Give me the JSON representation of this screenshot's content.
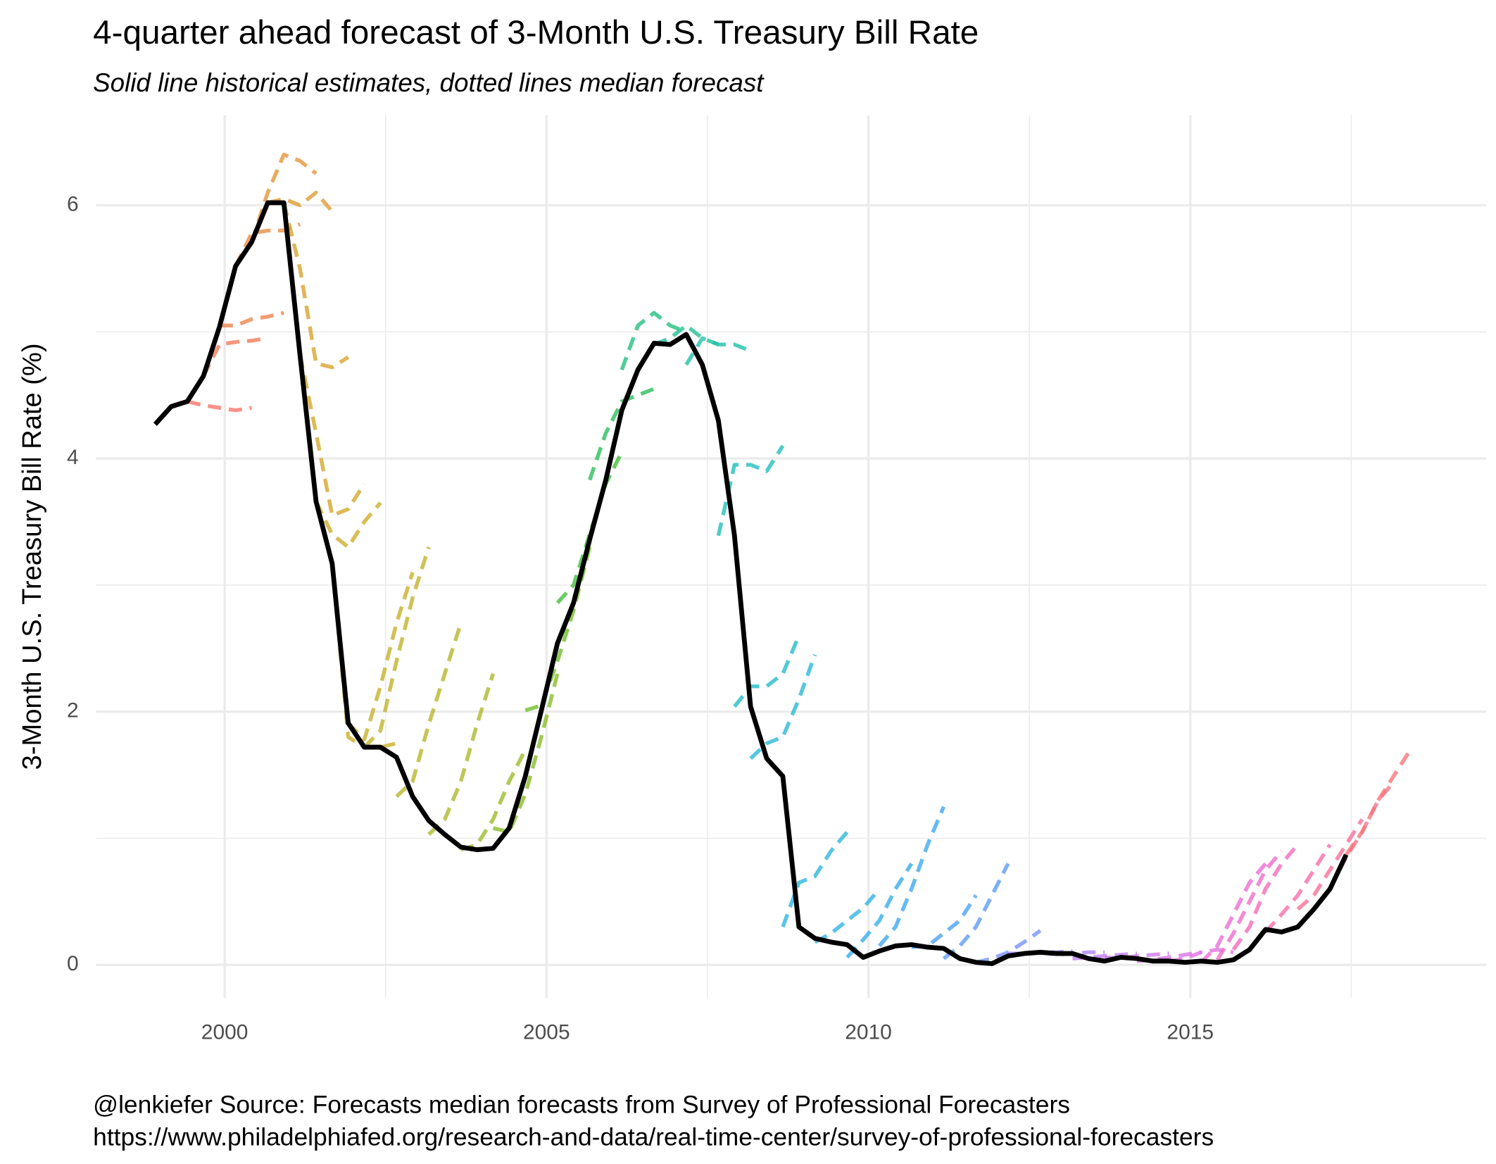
{
  "chart_data": {
    "type": "line",
    "title": "4-quarter ahead forecast of 3-Month U.S. Treasury Bill Rate",
    "subtitle": "Solid line historical estimates, dotted lines median forecast",
    "y_label": "3-Month U.S. Treasury Bill Rate (%)",
    "caption": [
      "@lenkiefer Source: Forecasts median forecasts from Survey of Professional Forecasters",
      "https://www.philadelphiafed.org/research-and-data/real-time-center/survey-of-professional-forecasters"
    ],
    "xlim": [
      1998,
      2019.6
    ],
    "ylim": [
      -0.26,
      6.71
    ],
    "xticks": [
      2000,
      2005,
      2010,
      2015
    ],
    "yticks": [
      0,
      2,
      4,
      6
    ],
    "x_minor_grid": [
      2002.5,
      2007.5,
      2012.5,
      2017.5
    ],
    "y_minor_grid": [
      1,
      3,
      5
    ],
    "grid": true,
    "series": [
      {
        "color": "#F8766D",
        "dashed": true,
        "x": [
          1999.42,
          1999.67,
          1999.92,
          2000.17,
          2000.42
        ],
        "values": [
          4.45,
          4.42,
          4.4,
          4.38,
          4.4
        ]
      },
      {
        "color": "#F37D5C",
        "dashed": true,
        "x": [
          1999.67,
          1999.92,
          2000.17,
          2000.42,
          2000.67
        ],
        "values": [
          4.65,
          4.9,
          4.92,
          4.93,
          4.95
        ]
      },
      {
        "color": "#EE8450",
        "dashed": true,
        "x": [
          1999.92,
          2000.17,
          2000.42,
          2000.67,
          2000.92
        ],
        "values": [
          5.05,
          5.05,
          5.1,
          5.12,
          5.15
        ]
      },
      {
        "color": "#E98D42",
        "dashed": true,
        "x": [
          2000.17,
          2000.42,
          2000.67,
          2000.92,
          2001.17
        ],
        "values": [
          5.52,
          5.78,
          5.8,
          5.8,
          5.85
        ]
      },
      {
        "color": "#E4963A",
        "dashed": true,
        "x": [
          2000.42,
          2000.67,
          2000.92,
          2001.17,
          2001.42
        ],
        "values": [
          5.71,
          6.1,
          6.4,
          6.35,
          6.25
        ]
      },
      {
        "color": "#DF9E33",
        "dashed": true,
        "x": [
          2000.67,
          2000.92,
          2001.17,
          2001.42,
          2001.67
        ],
        "values": [
          6.02,
          6.05,
          6.0,
          6.1,
          5.95
        ]
      },
      {
        "color": "#DAA32E",
        "dashed": true,
        "x": [
          2000.92,
          2001.17,
          2001.42,
          2001.67,
          2001.92
        ],
        "values": [
          6.02,
          5.5,
          4.75,
          4.72,
          4.8
        ]
      },
      {
        "color": "#D5A82B",
        "dashed": true,
        "x": [
          2001.17,
          2001.42,
          2001.67,
          2001.92,
          2002.17
        ],
        "values": [
          4.82,
          4.2,
          3.55,
          3.6,
          3.8
        ]
      },
      {
        "color": "#CFAD2B",
        "dashed": true,
        "x": [
          2001.42,
          2001.67,
          2001.92,
          2002.17,
          2002.42
        ],
        "values": [
          3.66,
          3.4,
          3.3,
          3.5,
          3.65
        ]
      },
      {
        "color": "#CBB02B",
        "dashed": true,
        "x": [
          2001.67,
          2001.92,
          2002.17,
          2002.42,
          2002.67
        ],
        "values": [
          3.17,
          1.8,
          1.72,
          1.72,
          1.75
        ]
      },
      {
        "color": "#C6B22C",
        "dashed": true,
        "x": [
          2001.92,
          2002.17,
          2002.42,
          2002.67,
          2002.92
        ],
        "values": [
          1.91,
          1.78,
          2.2,
          2.7,
          3.1
        ]
      },
      {
        "color": "#C0B42C",
        "dashed": true,
        "x": [
          2002.17,
          2002.42,
          2002.67,
          2002.92,
          2003.17
        ],
        "values": [
          1.72,
          1.85,
          2.4,
          2.9,
          3.3
        ]
      },
      {
        "color": "#B8B72B",
        "dashed": true,
        "x": [
          2002.67,
          2002.92,
          2003.17,
          2003.42,
          2003.67
        ],
        "values": [
          1.33,
          1.45,
          1.9,
          2.3,
          2.7
        ]
      },
      {
        "color": "#ADB92B",
        "dashed": true,
        "x": [
          2003.17,
          2003.42,
          2003.67,
          2003.92,
          2004.17
        ],
        "values": [
          1.03,
          1.15,
          1.45,
          1.9,
          2.3
        ]
      },
      {
        "color": "#9DBC2B",
        "dashed": true,
        "x": [
          2003.67,
          2003.92,
          2004.17,
          2004.42,
          2004.67
        ],
        "values": [
          0.91,
          0.95,
          1.15,
          1.45,
          1.7
        ]
      },
      {
        "color": "#8ABD2A",
        "dashed": true,
        "x": [
          2004.17,
          2004.42,
          2004.67,
          2004.92,
          2005.17
        ],
        "values": [
          1.08,
          1.05,
          1.35,
          1.8,
          2.3
        ]
      },
      {
        "color": "#6EBE2C",
        "dashed": true,
        "x": [
          2004.67,
          2004.92,
          2005.17,
          2005.42,
          2005.67
        ],
        "values": [
          2.01,
          2.05,
          2.4,
          2.8,
          3.3
        ]
      },
      {
        "color": "#45BE3C",
        "dashed": true,
        "x": [
          2005.17,
          2005.42,
          2005.67,
          2005.92,
          2006.17
        ],
        "values": [
          2.86,
          3.0,
          3.4,
          3.8,
          4.05
        ]
      },
      {
        "color": "#2DBE5E",
        "dashed": true,
        "x": [
          2005.67,
          2005.92,
          2006.17,
          2006.42,
          2006.67
        ],
        "values": [
          3.83,
          4.2,
          4.45,
          4.5,
          4.55
        ]
      },
      {
        "color": "#26BF7E",
        "dashed": true,
        "x": [
          2006.17,
          2006.42,
          2006.67,
          2006.92,
          2007.17
        ],
        "values": [
          4.7,
          5.05,
          5.15,
          5.05,
          5.0
        ]
      },
      {
        "color": "#21C093",
        "dashed": true,
        "x": [
          2006.67,
          2006.92,
          2007.17,
          2007.42,
          2007.67
        ],
        "values": [
          4.9,
          4.95,
          5.05,
          4.95,
          4.9
        ]
      },
      {
        "color": "#20C0A8",
        "dashed": true,
        "x": [
          2007.17,
          2007.42,
          2007.67,
          2007.92,
          2008.17
        ],
        "values": [
          4.74,
          4.95,
          4.9,
          4.9,
          4.85
        ]
      },
      {
        "color": "#22BFBC",
        "dashed": true,
        "x": [
          2007.67,
          2007.92,
          2008.17,
          2008.42,
          2008.67
        ],
        "values": [
          3.39,
          3.95,
          3.95,
          3.9,
          4.1
        ]
      },
      {
        "color": "#26BCCB",
        "dashed": true,
        "x": [
          2007.92,
          2008.17,
          2008.42,
          2008.67,
          2008.92
        ],
        "values": [
          2.04,
          2.2,
          2.2,
          2.3,
          2.6
        ]
      },
      {
        "color": "#2ABAD6",
        "dashed": true,
        "x": [
          2008.17,
          2008.42,
          2008.67,
          2008.92,
          2009.17
        ],
        "values": [
          1.63,
          1.75,
          1.8,
          2.1,
          2.45
        ]
      },
      {
        "color": "#2EB7DF",
        "dashed": true,
        "x": [
          2008.67,
          2008.92,
          2009.17,
          2009.42,
          2009.67
        ],
        "values": [
          0.3,
          0.65,
          0.7,
          0.9,
          1.05
        ]
      },
      {
        "color": "#33B3E6",
        "dashed": true,
        "x": [
          2009.17,
          2009.42,
          2009.67,
          2009.92,
          2010.17
        ],
        "values": [
          0.18,
          0.25,
          0.35,
          0.45,
          0.6
        ]
      },
      {
        "color": "#38AEEB",
        "dashed": true,
        "x": [
          2009.67,
          2009.92,
          2010.17,
          2010.42,
          2010.67
        ],
        "values": [
          0.06,
          0.2,
          0.35,
          0.6,
          0.8
        ]
      },
      {
        "color": "#3EA9F0",
        "dashed": true,
        "x": [
          2010.17,
          2010.42,
          2010.67,
          2010.92,
          2011.17
        ],
        "values": [
          0.15,
          0.3,
          0.6,
          0.95,
          1.25
        ]
      },
      {
        "color": "#4EA3F3",
        "dashed": true,
        "x": [
          2010.67,
          2010.92,
          2011.17,
          2011.42,
          2011.67
        ],
        "values": [
          0.14,
          0.15,
          0.25,
          0.35,
          0.55
        ]
      },
      {
        "color": "#5F9CF5",
        "dashed": true,
        "x": [
          2011.17,
          2011.42,
          2011.67,
          2011.92,
          2012.17
        ],
        "values": [
          0.05,
          0.15,
          0.3,
          0.55,
          0.8
        ]
      },
      {
        "color": "#7894F7",
        "dashed": true,
        "x": [
          2011.67,
          2011.92,
          2012.17,
          2012.42,
          2012.67
        ],
        "values": [
          0.02,
          0.05,
          0.1,
          0.18,
          0.27
        ]
      },
      {
        "color": "#9A8CF8",
        "dashed": true,
        "x": [
          2012.17,
          2012.42,
          2012.67,
          2012.92,
          2013.17
        ],
        "values": [
          0.09,
          0.09,
          0.1,
          0.1,
          0.11
        ]
      },
      {
        "color": "#B084F8",
        "dashed": true,
        "x": [
          2012.67,
          2012.92,
          2013.17,
          2013.42,
          2013.67
        ],
        "values": [
          0.1,
          0.08,
          0.09,
          0.1,
          0.1
        ]
      },
      {
        "color": "#C17EF6",
        "dashed": true,
        "x": [
          2013.17,
          2013.42,
          2013.67,
          2013.92,
          2014.17
        ],
        "values": [
          0.05,
          0.06,
          0.07,
          0.08,
          0.09
        ]
      },
      {
        "color": "#CF79F0",
        "dashed": true,
        "x": [
          2013.67,
          2013.92,
          2014.17,
          2014.42,
          2014.67
        ],
        "values": [
          0.06,
          0.05,
          0.07,
          0.08,
          0.09
        ]
      },
      {
        "color": "#DB74E8",
        "dashed": true,
        "x": [
          2014.17,
          2014.42,
          2014.67,
          2014.92,
          2015.17
        ],
        "values": [
          0.03,
          0.04,
          0.06,
          0.08,
          0.1
        ]
      },
      {
        "color": "#E570E0",
        "dashed": true,
        "x": [
          2014.67,
          2014.92,
          2015.17,
          2015.42,
          2015.67
        ],
        "values": [
          0.03,
          0.05,
          0.1,
          0.12,
          0.1
        ]
      },
      {
        "color": "#EC6DD5",
        "dashed": true,
        "x": [
          2015.17,
          2015.42,
          2015.67,
          2015.92,
          2016.17
        ],
        "values": [
          0.02,
          0.15,
          0.4,
          0.65,
          0.8
        ]
      },
      {
        "color": "#F06BC8",
        "dashed": true,
        "x": [
          2015.42,
          2015.67,
          2015.92,
          2016.17,
          2016.42
        ],
        "values": [
          0.04,
          0.25,
          0.5,
          0.75,
          0.9
        ]
      },
      {
        "color": "#F46CB9",
        "dashed": true,
        "x": [
          2015.67,
          2015.92,
          2016.17,
          2016.42,
          2016.67
        ],
        "values": [
          0.12,
          0.3,
          0.6,
          0.8,
          0.95
        ]
      },
      {
        "color": "#F66EAA",
        "dashed": true,
        "x": [
          2016.17,
          2016.42,
          2016.67,
          2016.92,
          2017.17
        ],
        "values": [
          0.26,
          0.4,
          0.55,
          0.75,
          0.95
        ]
      },
      {
        "color": "#F7719A",
        "dashed": true,
        "x": [
          2016.67,
          2016.92,
          2017.17,
          2017.42,
          2017.67
        ],
        "values": [
          0.44,
          0.55,
          0.75,
          0.95,
          1.15
        ]
      },
      {
        "color": "#F8738A",
        "dashed": true,
        "x": [
          2017.17,
          2017.42,
          2017.67,
          2017.92,
          2018.17
        ],
        "values": [
          0.6,
          0.85,
          1.05,
          1.3,
          1.45
        ]
      },
      {
        "color": "#F8767B",
        "dashed": true,
        "x": [
          2017.42,
          2017.67,
          2017.92,
          2018.17,
          2018.42
        ],
        "values": [
          0.87,
          1.05,
          1.3,
          1.5,
          1.7
        ]
      },
      {
        "color": "#000000",
        "dashed": false,
        "x": [
          1998.92,
          1999.17,
          1999.42,
          1999.67,
          1999.92,
          2000.17,
          2000.42,
          2000.67,
          2000.92,
          2001.17,
          2001.42,
          2001.67,
          2001.92,
          2002.17,
          2002.42,
          2002.67,
          2002.92,
          2003.17,
          2003.42,
          2003.67,
          2003.92,
          2004.17,
          2004.42,
          2004.67,
          2004.92,
          2005.17,
          2005.42,
          2005.67,
          2005.92,
          2006.17,
          2006.42,
          2006.67,
          2006.92,
          2007.17,
          2007.42,
          2007.67,
          2007.92,
          2008.17,
          2008.42,
          2008.67,
          2008.92,
          2009.17,
          2009.42,
          2009.67,
          2009.92,
          2010.17,
          2010.42,
          2010.67,
          2010.92,
          2011.17,
          2011.42,
          2011.67,
          2011.92,
          2012.17,
          2012.42,
          2012.67,
          2012.92,
          2013.17,
          2013.42,
          2013.67,
          2013.92,
          2014.17,
          2014.42,
          2014.67,
          2014.92,
          2015.17,
          2015.42,
          2015.67,
          2015.92,
          2016.17,
          2016.42,
          2016.67,
          2016.92,
          2017.17,
          2017.42
        ],
        "values": [
          4.27,
          4.41,
          4.45,
          4.65,
          5.04,
          5.52,
          5.71,
          6.02,
          6.02,
          4.82,
          3.66,
          3.17,
          1.91,
          1.72,
          1.72,
          1.64,
          1.33,
          1.14,
          1.03,
          0.93,
          0.91,
          0.92,
          1.08,
          1.49,
          2.01,
          2.54,
          2.86,
          3.36,
          3.83,
          4.38,
          4.7,
          4.91,
          4.9,
          4.98,
          4.74,
          4.3,
          3.39,
          2.04,
          1.63,
          1.49,
          0.3,
          0.21,
          0.18,
          0.16,
          0.06,
          0.11,
          0.15,
          0.16,
          0.14,
          0.13,
          0.05,
          0.02,
          0.01,
          0.07,
          0.09,
          0.1,
          0.09,
          0.09,
          0.05,
          0.03,
          0.06,
          0.05,
          0.03,
          0.03,
          0.02,
          0.03,
          0.02,
          0.04,
          0.12,
          0.28,
          0.26,
          0.3,
          0.44,
          0.6,
          0.87
        ]
      }
    ]
  }
}
